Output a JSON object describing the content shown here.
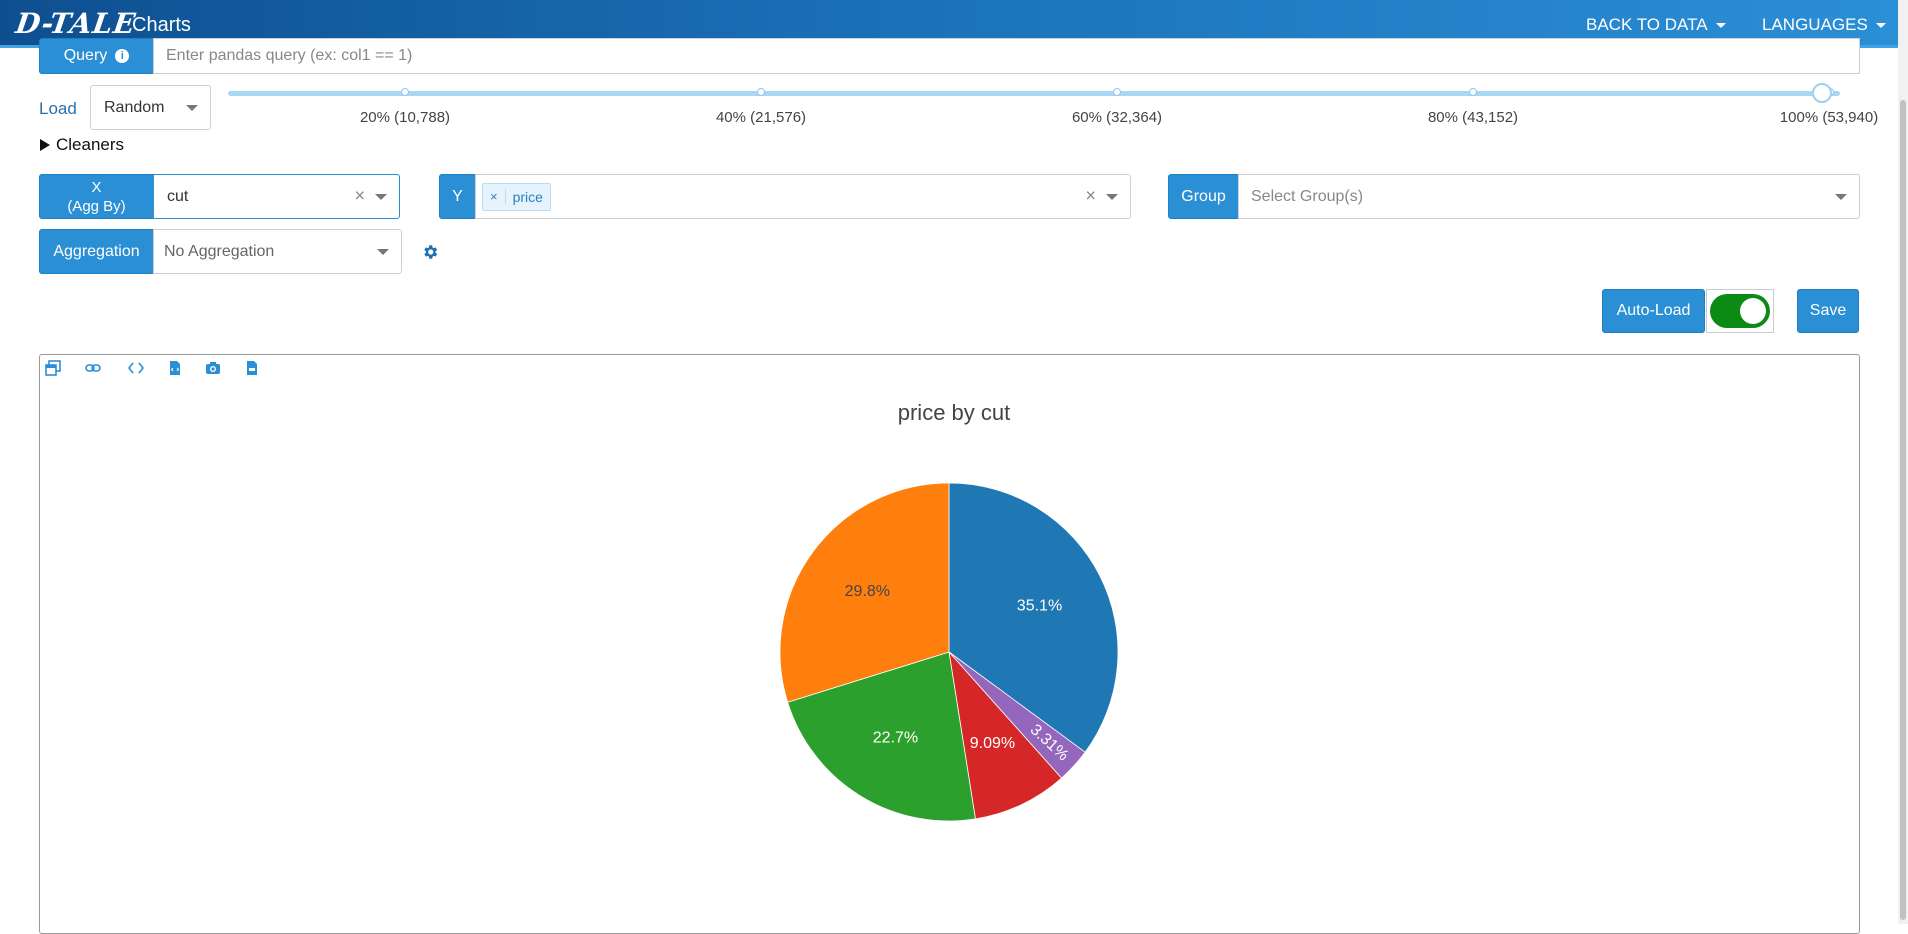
{
  "header": {
    "logo": "D-TALE",
    "subtitle": "Charts",
    "nav": [
      {
        "label": "BACK TO DATA"
      },
      {
        "label": "LANGUAGES"
      }
    ]
  },
  "query": {
    "label": "Query",
    "placeholder": "Enter pandas query (ex: col1 == 1)"
  },
  "load": {
    "label": "Load",
    "selected": "Random",
    "slider": {
      "value_percent": 100,
      "ticks": [
        "20% (10,788)",
        "40% (21,576)",
        "60% (32,364)",
        "80% (43,152)",
        "100% (53,940)"
      ]
    }
  },
  "cleaners": {
    "label": "Cleaners"
  },
  "x_axis": {
    "label_line1": "X",
    "label_line2": "(Agg By)",
    "value": "cut"
  },
  "y_axis": {
    "label": "Y",
    "tags": [
      "price"
    ]
  },
  "group": {
    "label": "Group",
    "placeholder": "Select Group(s)"
  },
  "aggregation": {
    "label": "Aggregation",
    "value": "No Aggregation"
  },
  "actions": {
    "autoload_label": "Auto-Load",
    "autoload_on": true,
    "save_label": "Save"
  },
  "toolbar_icons": [
    "popup-icon",
    "link-icon",
    "code-icon",
    "export-html-icon",
    "camera-icon",
    "export-csv-icon"
  ],
  "colors": {
    "accent": "#2a8fd4",
    "toggle_on": "#0b8a14"
  },
  "chart_data": {
    "type": "pie",
    "title": "price by cut",
    "categories": [
      "",
      "",
      "",
      "",
      ""
    ],
    "values": [
      35.1,
      3.31,
      9.09,
      22.7,
      29.8
    ],
    "labels": [
      "35.1%",
      "3.31%",
      "9.09%",
      "22.7%",
      "29.8%"
    ],
    "colors": [
      "#1f77b4",
      "#9467bd",
      "#d62728",
      "#2ca02c",
      "#ff7f0e"
    ]
  }
}
